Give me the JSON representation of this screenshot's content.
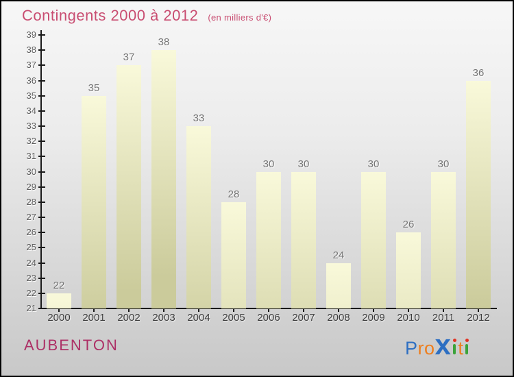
{
  "title": "Contingents 2000 à 2012",
  "subtitle": "(en milliers d'€)",
  "footer": {
    "location": "AUBENTON"
  },
  "logo": {
    "text": "Proxiti",
    "letters": [
      {
        "ch": "P",
        "color": "#2d6fc2",
        "style": "normal"
      },
      {
        "ch": "r",
        "color": "#ee7e1d",
        "style": "normal"
      },
      {
        "ch": "o",
        "color": "#ee7e1d",
        "style": "normal"
      },
      {
        "ch": "x",
        "color": "#2d6fc2",
        "style": "big-x"
      },
      {
        "ch": "i",
        "style": "dotted-i",
        "dot_color": "#e23222",
        "stem_color": "#3ba33a"
      },
      {
        "ch": "t",
        "color": "#ee7e1d",
        "style": "normal"
      },
      {
        "ch": "i",
        "style": "dotted-i",
        "dot_color": "#e23222",
        "stem_color": "#3ba33a"
      }
    ]
  },
  "colors": {
    "title": "#c94e72",
    "footer_location": "#ad3066",
    "axis": "#1a1a1a",
    "ytick_label": "#5d5d5d",
    "year_label": "#3d3d3d",
    "value_label": "#757575",
    "bar_top": "#f9f9da",
    "bar_bottom": "#cbcb9b",
    "background_top": "#f7f7f7",
    "background_bottom": "#c8c8c8",
    "border": "#000000"
  },
  "chart_data": {
    "type": "bar",
    "title": "Contingents 2000 à 2012",
    "subtitle": "(en milliers d'€)",
    "categories": [
      "2000",
      "2001",
      "2002",
      "2003",
      "2004",
      "2005",
      "2006",
      "2007",
      "2008",
      "2009",
      "2010",
      "2011",
      "2012"
    ],
    "values": [
      22,
      35,
      37,
      38,
      33,
      28,
      30,
      30,
      24,
      30,
      26,
      30,
      36
    ],
    "xlabel": "",
    "ylabel": "",
    "ylim": [
      21,
      39
    ],
    "yticks": [
      21,
      22,
      23,
      24,
      25,
      26,
      27,
      28,
      29,
      30,
      31,
      32,
      33,
      34,
      35,
      36,
      37,
      38,
      39
    ],
    "grid": false,
    "legend": false,
    "value_labels_shown": true
  }
}
